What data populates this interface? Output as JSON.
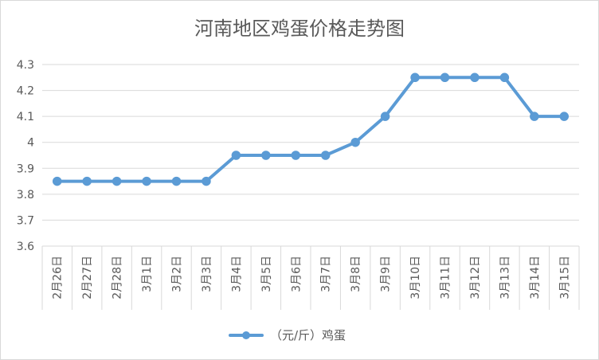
{
  "chart_data": {
    "type": "line",
    "title": "河南地区鸡蛋价格走势图",
    "categories": [
      "2月26日",
      "2月27日",
      "2月28日",
      "3月1日",
      "3月2日",
      "3月3日",
      "3月4日",
      "3月5日",
      "3月6日",
      "3月7日",
      "3月8日",
      "3月9日",
      "3月10日",
      "3月11日",
      "3月12日",
      "3月13日",
      "3月14日",
      "3月15日"
    ],
    "series": [
      {
        "name": "（元/斤）鸡蛋",
        "values": [
          3.85,
          3.85,
          3.85,
          3.85,
          3.85,
          3.85,
          3.95,
          3.95,
          3.95,
          3.95,
          4.0,
          4.1,
          4.25,
          4.25,
          4.25,
          4.25,
          4.1,
          4.1
        ]
      }
    ],
    "ylim": [
      3.6,
      4.3
    ],
    "yticks": [
      "3.6",
      "3.7",
      "3.8",
      "3.9",
      "4",
      "4.1",
      "4.2",
      "4.3"
    ],
    "xlabel": "",
    "ylabel": "",
    "grid": true,
    "legend": "bottom",
    "color": "#5b9bd5"
  }
}
